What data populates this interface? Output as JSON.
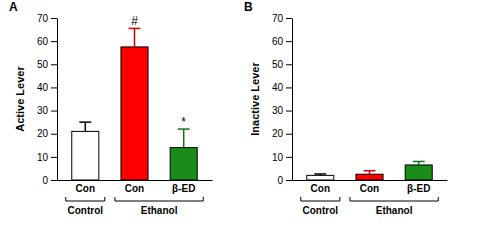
{
  "chart_data": [
    {
      "type": "bar",
      "title": "A",
      "ylabel": "Active Lever",
      "categories": [
        "Con",
        "Con",
        "β-ED"
      ],
      "values": [
        21,
        57.5,
        14
      ],
      "errors": [
        4,
        8,
        8
      ],
      "colors": [
        "#ffffff",
        "#ff0000",
        "#1a8c1a"
      ],
      "group_labels": [
        "Control",
        "Ethanol",
        "Ethanol"
      ],
      "annotations": [
        null,
        "#",
        "*"
      ],
      "ylim": [
        0,
        70
      ],
      "yticks": [
        0,
        10,
        20,
        30,
        40,
        50,
        60,
        70
      ]
    },
    {
      "type": "bar",
      "title": "B",
      "ylabel": "Inactive Lever",
      "categories": [
        "Con",
        "Con",
        "β-ED"
      ],
      "values": [
        2,
        2.5,
        6.5
      ],
      "errors": [
        0.6,
        1.5,
        1.5
      ],
      "colors": [
        "#ffffff",
        "#ff0000",
        "#1a8c1a"
      ],
      "group_labels": [
        "Control",
        "Ethanol",
        "Ethanol"
      ],
      "ylim": [
        0,
        70
      ],
      "yticks": [
        0,
        10,
        20,
        30,
        40,
        50,
        60,
        70
      ]
    }
  ]
}
